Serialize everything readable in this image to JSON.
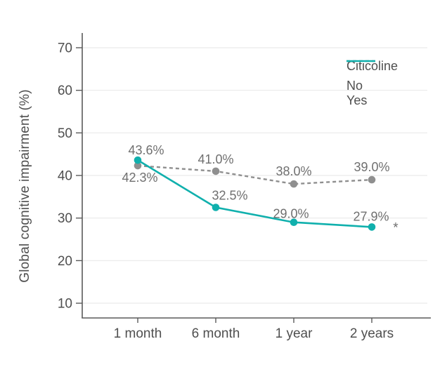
{
  "y_axis_title": "Global cognitive impairment (%)",
  "legend": {
    "title": "Citicoline",
    "items": [
      {
        "label": "No",
        "style": "dashed",
        "color": "#8f8f8f"
      },
      {
        "label": "Yes",
        "style": "solid",
        "color": "#10b0ad"
      }
    ]
  },
  "colors": {
    "axis": "#5a5a5a",
    "grid": "#e9e9e9",
    "tick_text": "#4f4f4f",
    "data_label_text": "#6f6f6f",
    "series_no": "#8f8f8f",
    "series_yes": "#10b0ad"
  },
  "chart_data": {
    "type": "line",
    "categories": [
      "1 month",
      "6 month",
      "1 year",
      "2 years"
    ],
    "series": [
      {
        "name": "No",
        "values": [
          42.3,
          41.0,
          38.0,
          39.0
        ],
        "point_labels": [
          "42.3%",
          "41.0%",
          "38.0%",
          "39.0%"
        ],
        "color": "#8f8f8f",
        "dashed": true,
        "label_offsets": [
          [
            3,
            17
          ],
          [
            0,
            -17
          ],
          [
            0,
            -18
          ],
          [
            0,
            -18
          ]
        ]
      },
      {
        "name": "Yes",
        "values": [
          43.6,
          32.5,
          29.0,
          27.9
        ],
        "point_labels": [
          "43.6%",
          "32.5%",
          "29.0%",
          "27.9%"
        ],
        "color": "#10b0ad",
        "dashed": false,
        "label_offsets": [
          [
            12,
            -14
          ],
          [
            20,
            -17
          ],
          [
            -4,
            -12
          ],
          [
            -1,
            -15
          ]
        ]
      }
    ],
    "title": "",
    "xlabel": "",
    "ylabel": "Global cognitive impairment (%)",
    "ylim": [
      10,
      70
    ],
    "yticks": [
      10,
      20,
      30,
      40,
      50,
      60,
      70
    ],
    "grid": true,
    "legend_position": "top-right",
    "annotations": [
      {
        "text": "*",
        "series": "Yes",
        "point_index": 3,
        "offset": [
          34,
          7
        ]
      }
    ]
  }
}
